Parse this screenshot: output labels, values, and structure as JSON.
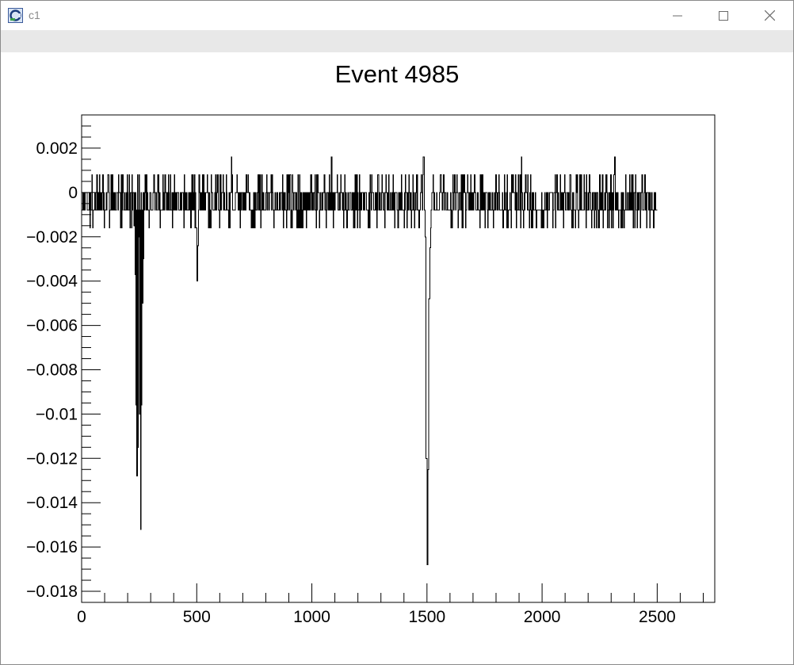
{
  "window": {
    "title": "c1",
    "minimize_glyph": "—",
    "maximize_glyph": "☐",
    "close_glyph": "✕",
    "app_icon": "root-canvas-icon"
  },
  "chart_data": {
    "type": "line",
    "title": "Event 4985",
    "xlabel": "",
    "ylabel": "",
    "xlim": [
      0,
      2750
    ],
    "ylim": [
      -0.0185,
      0.0035
    ],
    "x_ticks": [
      0,
      500,
      1000,
      1500,
      2000,
      2500
    ],
    "x_tick_labels": [
      "0",
      "500",
      "1000",
      "1500",
      "2000",
      "2500"
    ],
    "y_ticks": [
      0.002,
      0,
      -0.002,
      -0.004,
      -0.006,
      -0.008,
      -0.01,
      -0.012,
      -0.014,
      -0.016,
      -0.018
    ],
    "y_tick_labels": [
      "0.002",
      "0",
      "−0.002",
      "−0.004",
      "−0.006",
      "−0.008",
      "−0.01",
      "−0.012",
      "−0.014",
      "−0.016",
      "−0.018"
    ],
    "grid": false,
    "series": [
      {
        "color": "#000000",
        "x_range": [
          0,
          2500
        ],
        "baseline_levels": [
          0.0008,
          0,
          -0.0008,
          -0.0016
        ],
        "upper_spikes": [
          [
            650,
            0.0016
          ],
          [
            1085,
            0.0016
          ],
          [
            1485,
            0.0016
          ],
          [
            1910,
            0.0016
          ],
          [
            2315,
            0.0016
          ]
        ],
        "pulses": [
          {
            "x": 228,
            "values": [
              -0.0015,
              -0.0037,
              -0.0096,
              -0.0128,
              -0.0115,
              -0.0045
            ]
          },
          {
            "x": 248,
            "values": [
              -0.002,
              -0.01,
              -0.0152,
              -0.0096,
              -0.005,
              -0.003
            ]
          },
          {
            "x": 497,
            "values": [
              -0.0016,
              -0.004,
              -0.0024
            ]
          },
          {
            "x": 1493,
            "values": [
              -0.002,
              -0.012,
              -0.0168,
              -0.0125,
              -0.0048,
              -0.0025
            ]
          }
        ]
      }
    ]
  }
}
